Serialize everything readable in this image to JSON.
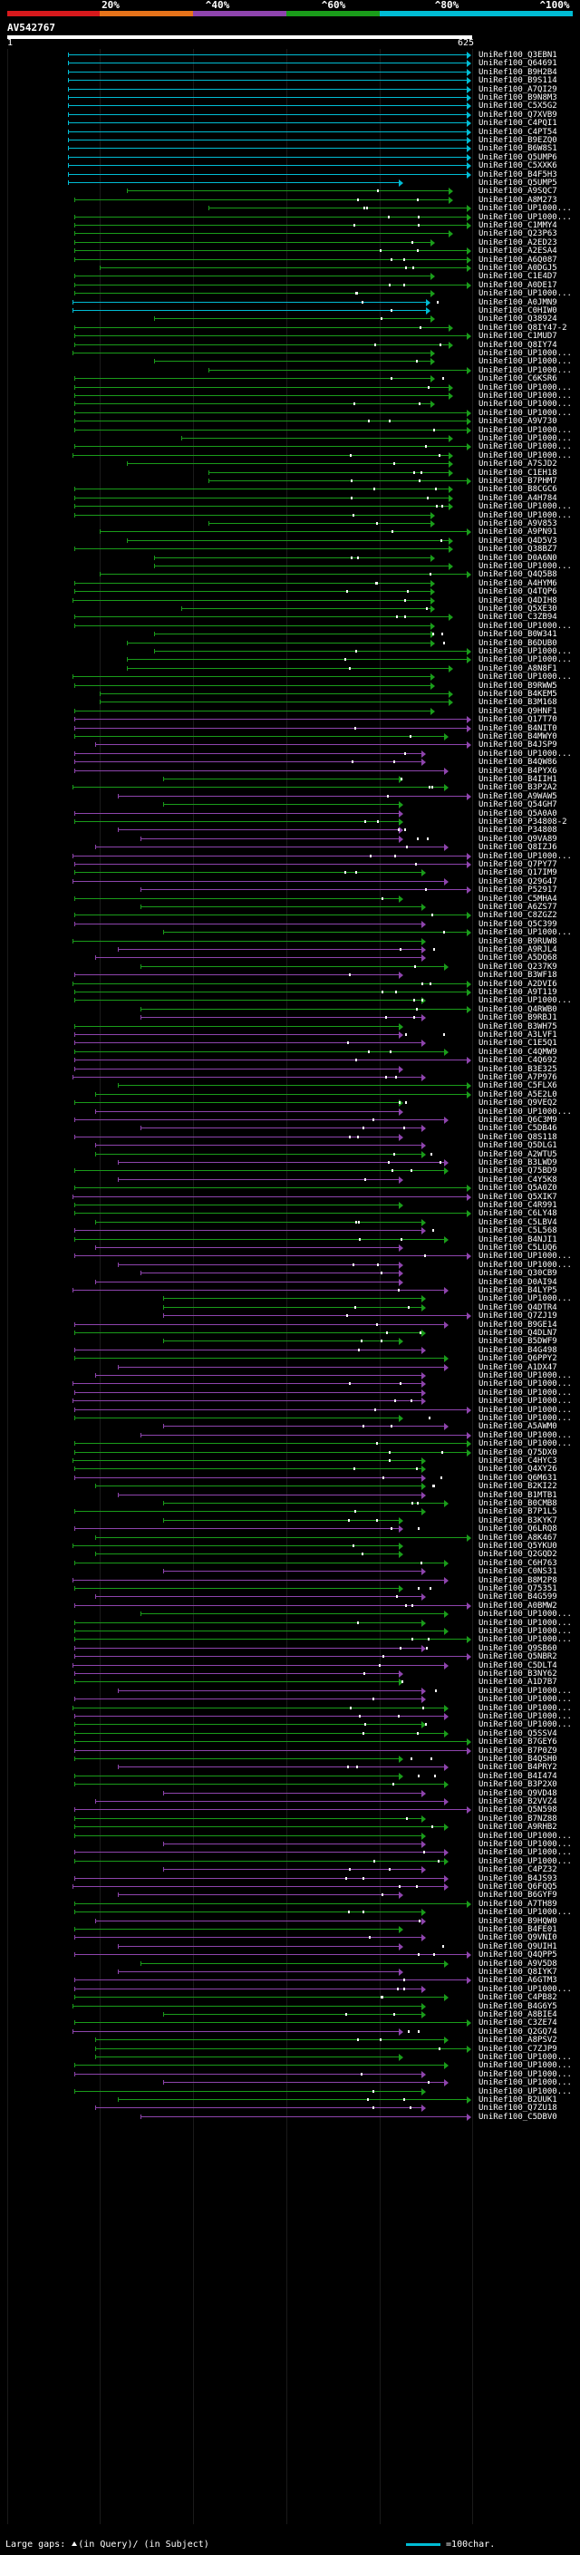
{
  "scale": {
    "labels": [
      "20%",
      "^40%",
      "^60%",
      "^80%",
      "^100%"
    ],
    "colors": [
      "#d7191c",
      "#e6731a",
      "#8e44ad",
      "#1a9c1a",
      "#00bcd4"
    ]
  },
  "query": {
    "title": "AV542767",
    "range_start": "1",
    "range_end": "625"
  },
  "hits": [
    "UniRef100_Q3EBN1",
    "UniRef100_Q64691",
    "UniRef100_B9H2B4",
    "UniRef100_B9S114",
    "UniRef100_A7QI29",
    "UniRef100_B9N8M3",
    "UniRef100_C5X5G2",
    "UniRef100_Q7XVB9",
    "UniRef100_C4PQI1",
    "UniRef100_C4PT54",
    "UniRef100_B9EZQ0",
    "UniRef100_B6W8S1",
    "UniRef100_Q5UMP6",
    "UniRef100_C5XXK6",
    "UniRef100_B4F5H3",
    "UniRef100_Q5UMP5",
    "UniRef100_A9SQC7",
    "UniRef100_A8M273",
    "UniRef100_UP1000...",
    "UniRef100_UP1000...",
    "UniRef100_C1MMY4",
    "UniRef100_Q23P63",
    "UniRef100_A2ED23",
    "UniRef100_A2ESA4",
    "UniRef100_A6Q087",
    "UniRef100_A0DGJ5",
    "UniRef100_C1E4D7",
    "UniRef100_A0DE17",
    "UniRef100_UP1000...",
    "UniRef100_A0JMN9",
    "UniRef100_C0HIW0",
    "UniRef100_Q38924",
    "UniRef100_Q8IY47-2",
    "UniRef100_C1MUD7",
    "UniRef100_Q8IY74",
    "UniRef100_UP1000...",
    "UniRef100_UP1000...",
    "UniRef100_UP1000...",
    "UniRef100_C6KSR6",
    "UniRef100_UP1000...",
    "UniRef100_UP1000...",
    "UniRef100_UP1000...",
    "UniRef100_UP1000...",
    "UniRef100_A9V730",
    "UniRef100_UP1000...",
    "UniRef100_UP1000...",
    "UniRef100_UP1000...",
    "UniRef100_UP1000...",
    "UniRef100_A7SJD2",
    "UniRef100_C1EH18",
    "UniRef100_B7PHM7",
    "UniRef100_B8CGC6",
    "UniRef100_A4H784",
    "UniRef100_UP1000...",
    "UniRef100_UP1000...",
    "UniRef100_A9V853",
    "UniRef100_A9PN91",
    "UniRef100_Q4D5V3",
    "UniRef100_Q38BZ7",
    "UniRef100_D0A6N0",
    "UniRef100_UP1000...",
    "UniRef100_Q4Q5B8",
    "UniRef100_A4HYM6",
    "UniRef100_Q4TQP6",
    "UniRef100_Q4DIH8",
    "UniRef100_Q5XE30",
    "UniRef100_C3ZB94",
    "UniRef100_UP1000...",
    "UniRef100_B0W341",
    "UniRef100_B6DUB0",
    "UniRef100_UP1000...",
    "UniRef100_UP1000...",
    "UniRef100_A8N8F1",
    "UniRef100_UP1000...",
    "UniRef100_B9RWW5",
    "UniRef100_B4KEM5",
    "UniRef100_B3M168",
    "UniRef100_Q9HNF1",
    "UniRef100_Q17T70",
    "UniRef100_B4NIT0",
    "UniRef100_B4MWY0",
    "UniRef100_B4JSP9",
    "UniRef100_UP1000...",
    "UniRef100_B4QW86",
    "UniRef100_B4PYX6",
    "UniRef100_B4IIH1",
    "UniRef100_B3P2A2",
    "UniRef100_A9WAW5",
    "UniRef100_Q54GH7",
    "UniRef100_Q5A0A0",
    "UniRef100_P34808-2",
    "UniRef100_P34808",
    "UniRef100_Q9VA89",
    "UniRef100_Q8IZJ6",
    "UniRef100_UP1000...",
    "UniRef100_Q7PY77",
    "UniRef100_Q17IM9",
    "UniRef100_Q29G47",
    "UniRef100_P52917",
    "UniRef100_C5MHA4",
    "UniRef100_A6ZS77",
    "UniRef100_C8ZGZ2",
    "UniRef100_Q5C399",
    "UniRef100_UP1000...",
    "UniRef100_B9RUW8",
    "UniRef100_A9RJL4",
    "UniRef100_A5DQ68",
    "UniRef100_Q237K9",
    "UniRef100_B3WF18",
    "UniRef100_A2DVI6",
    "UniRef100_A9T119",
    "UniRef100_UP1000...",
    "UniRef100_Q4RWB0",
    "UniRef100_B9RBJ1",
    "UniRef100_B3WH75",
    "UniRef100_A3LVF1",
    "UniRef100_C1E5Q1",
    "UniRef100_C4QMW9",
    "UniRef100_C4Q692",
    "UniRef100_B3E325",
    "UniRef100_A7P976",
    "UniRef100_C5FLX6",
    "UniRef100_A5E2L0",
    "UniRef100_Q9VEQ2",
    "UniRef100_UP1000...",
    "UniRef100_Q6C3M9",
    "UniRef100_C5DB46",
    "UniRef100_Q8S118",
    "UniRef100_Q5DLG1",
    "UniRef100_A2WTU5",
    "UniRef100_B3LWD9",
    "UniRef100_Q75BD9",
    "UniRef100_C4Y5K8",
    "UniRef100_Q5A0Z0",
    "UniRef100_Q5XIK7",
    "UniRef100_C4R991",
    "UniRef100_C6LY48",
    "UniRef100_C5LBV4",
    "UniRef100_C5L568",
    "UniRef100_B4NJI1",
    "UniRef100_C5LUQ6",
    "UniRef100_UP1000...",
    "UniRef100_UP1000...",
    "UniRef100_Q30CB9",
    "UniRef100_D0AI94",
    "UniRef100_B4LYP5",
    "UniRef100_UP1000...",
    "UniRef100_Q4DTR4",
    "UniRef100_Q7ZJ19",
    "UniRef100_B9GE14",
    "UniRef100_Q4DLN7",
    "UniRef100_B5DWF9",
    "UniRef100_B4G498",
    "UniRef100_Q6PPY2",
    "UniRef100_A1DX47",
    "UniRef100_UP1000...",
    "UniRef100_UP1000...",
    "UniRef100_UP1000...",
    "UniRef100_UP1000...",
    "UniRef100_UP1000...",
    "UniRef100_UP1000...",
    "UniRef100_A5AWM0",
    "UniRef100_UP1000...",
    "UniRef100_UP1000...",
    "UniRef100_Q75DX0",
    "UniRef100_C4HYC3",
    "UniRef100_Q4XY26",
    "UniRef100_Q6M631",
    "UniRef100_B2KI22",
    "UniRef100_B1MTB1",
    "UniRef100_B0CMB8",
    "UniRef100_B7P1L5",
    "UniRef100_B3KYK7",
    "UniRef100_Q6LRQ8",
    "UniRef100_A8K467",
    "UniRef100_Q5YKU0",
    "UniRef100_Q2GQD2",
    "UniRef100_C6H763",
    "UniRef100_C0NS31",
    "UniRef100_B8M2P8",
    "UniRef100_Q75351",
    "UniRef100_B4G599",
    "UniRef100_A0BMW2",
    "UniRef100_UP1000...",
    "UniRef100_UP1000...",
    "UniRef100_UP1000...",
    "UniRef100_UP1000...",
    "UniRef100_Q9SB60",
    "UniRef100_Q5NBR2",
    "UniRef100_C5DLT4",
    "UniRef100_B3NY62",
    "UniRef100_A1D7B7",
    "UniRef100_UP1000...",
    "UniRef100_UP1000...",
    "UniRef100_UP1000...",
    "UniRef100_UP1000...",
    "UniRef100_UP1000...",
    "UniRef100_Q5SSV4",
    "UniRef100_B7GEY6",
    "UniRef100_B7P0Z9",
    "UniRef100_B4QSH0",
    "UniRef100_B4PRY2",
    "UniRef100_B4I474",
    "UniRef100_B3P2X0",
    "UniRef100_Q9VD48",
    "UniRef100_B2VVZ4",
    "UniRef100_Q5N598",
    "UniRef100_B7NZ88",
    "UniRef100_A9RHB2",
    "UniRef100_UP1000...",
    "UniRef100_UP1000...",
    "UniRef100_UP1000...",
    "UniRef100_UP1000...",
    "UniRef100_C4PZ32",
    "UniRef100_B4JS93",
    "UniRef100_Q6FQQ5",
    "UniRef100_B6GYF9",
    "UniRef100_A7TH89",
    "UniRef100_UP1000...",
    "UniRef100_B9HQW0",
    "UniRef100_B4FE01",
    "UniRef100_Q9VNI0",
    "UniRef100_Q9UIH1",
    "UniRef100_Q4QPP5",
    "UniRef100_A9V5D8",
    "UniRef100_Q8IYK7",
    "UniRef100_A6GTM3",
    "UniRef100_UP1000...",
    "UniRef100_C4PB82",
    "UniRef100_B4G6Y5",
    "UniRef100_A8BIE4",
    "UniRef100_C3ZE74",
    "UniRef100_Q2GQ74",
    "UniRef100_A8PSV2",
    "UniRef100_C7ZJP9",
    "UniRef100_UP1000...",
    "UniRef100_UP1000...",
    "UniRef100_UP1000...",
    "UniRef100_UP1000...",
    "UniRef100_UP1000...",
    "UniRef100_B2UUK1",
    "UniRef100_Q7ZU18",
    "UniRef100_C5DBV0"
  ],
  "footer": {
    "gaps_label": "Large gaps:",
    "query_gap": "(in Query)/",
    "subject_gap": "(in Subject)",
    "legend_label": "=100char."
  }
}
